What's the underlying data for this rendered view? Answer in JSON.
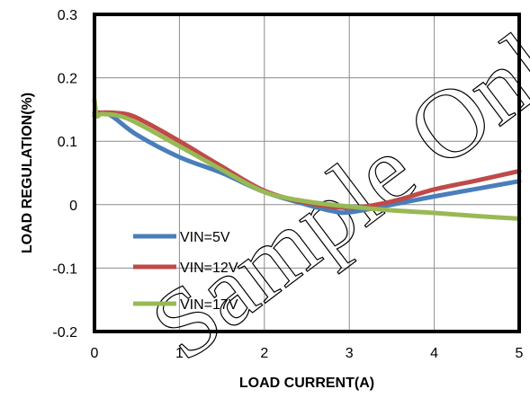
{
  "chart_data": {
    "type": "line",
    "title": "",
    "xlabel": "LOAD CURRENT(A)",
    "ylabel": "LOAD REGULATION(%)",
    "xlim": [
      0,
      5
    ],
    "ylim": [
      -0.2,
      0.3
    ],
    "x_ticks": [
      "0",
      "1",
      "2",
      "3",
      "4",
      "5"
    ],
    "y_ticks": [
      "-0.2",
      "-0.1",
      "0",
      "0.1",
      "0.2",
      "0.3"
    ],
    "grid": true,
    "legend": "lower-left",
    "series": [
      {
        "name": "VIN=5V",
        "color": "#4a7ebb",
        "x": [
          0,
          0.05,
          0.2,
          0.5,
          1.0,
          1.5,
          2.0,
          2.5,
          2.8,
          3.0,
          3.5,
          4.0,
          4.5,
          5.0
        ],
        "y": [
          0.14,
          0.145,
          0.14,
          0.11,
          0.075,
          0.05,
          0.02,
          0.0,
          -0.01,
          -0.012,
          0.0,
          0.013,
          0.025,
          0.037
        ]
      },
      {
        "name": "VIN=12V",
        "color": "#be4b48",
        "x": [
          0,
          0.05,
          0.2,
          0.4,
          0.6,
          1.0,
          1.5,
          2.0,
          2.5,
          3.0,
          3.5,
          4.0,
          4.5,
          5.0
        ],
        "y": [
          0.145,
          0.145,
          0.145,
          0.142,
          0.13,
          0.1,
          0.06,
          0.022,
          0.003,
          -0.005,
          0.005,
          0.024,
          0.038,
          0.053
        ]
      },
      {
        "name": "VIN=17V",
        "color": "#98b954",
        "x": [
          0,
          0.03,
          0.1,
          0.4,
          1.0,
          1.5,
          2.0,
          2.5,
          3.0,
          3.5,
          4.0,
          4.5,
          5.0
        ],
        "y": [
          0.165,
          0.14,
          0.143,
          0.135,
          0.092,
          0.055,
          0.02,
          0.005,
          -0.003,
          -0.009,
          -0.013,
          -0.018,
          -0.022
        ]
      }
    ]
  },
  "watermark": "Sample Only"
}
